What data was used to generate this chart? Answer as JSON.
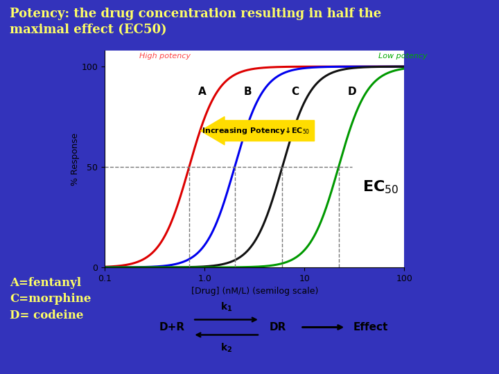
{
  "bg_color": "#3333bb",
  "title_text": "Potency: the drug concentration resulting in half the\nmaximal effect (EC50)",
  "title_color": "#ffff66",
  "title_fontsize": 13,
  "curves": [
    {
      "label": "A",
      "ec50": 0.7,
      "color": "#dd0000"
    },
    {
      "label": "B",
      "ec50": 2.0,
      "color": "#0000ee"
    },
    {
      "label": "C",
      "ec50": 6.0,
      "color": "#111111"
    },
    {
      "label": "D",
      "ec50": 22.0,
      "color": "#009900"
    }
  ],
  "high_potency_color": "#ff4444",
  "low_potency_color": "#00aa00",
  "xlabel": "[Drug] (nM/L) (semilog scale)",
  "ylabel": "% Response",
  "xticks": [
    0.1,
    1.0,
    10,
    100
  ],
  "yticks": [
    0,
    50,
    100
  ],
  "bottom_left_text": "A=fentanyl\nC=morphine\nD= codeine",
  "bottom_left_color": "#ffff66",
  "bottom_left_fontsize": 12,
  "reaction_box_bg": "#ffff00",
  "chart_bg": "#ffffff",
  "hill": 3.0
}
